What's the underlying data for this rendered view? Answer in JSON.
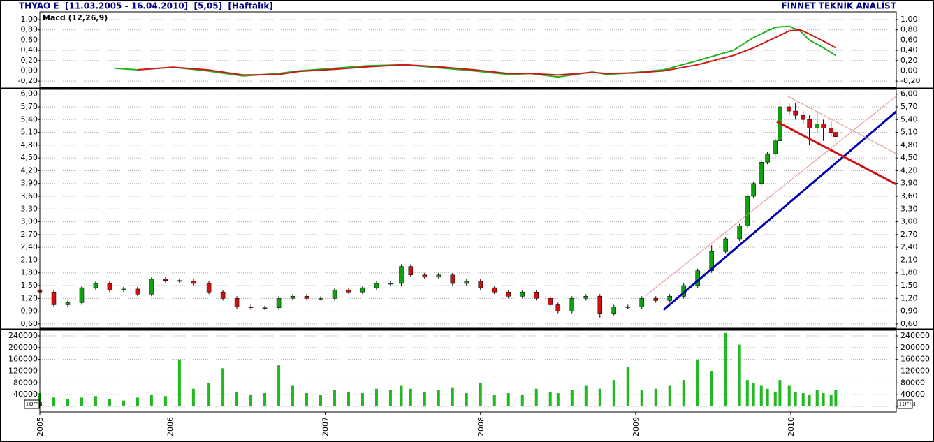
{
  "header": {
    "title": "THYAO E  [11.03.2005 - 16.04.2010]  [5,05]  [Haftalık]",
    "brand": "FİNNET TEKNİK ANALİST"
  },
  "chart_data": [
    {
      "type": "line",
      "title": "Macd (12,26,9)",
      "x": [
        2005.64,
        2005.79,
        2006.02,
        2006.24,
        2006.47,
        2006.7,
        2006.83,
        2007.06,
        2007.28,
        2007.51,
        2007.73,
        2007.96,
        2008.18,
        2008.32,
        2008.5,
        2008.72,
        2008.82,
        2009.0,
        2009.18,
        2009.4,
        2009.63,
        2009.76,
        2009.9,
        2009.99,
        2010.06,
        2010.12,
        2010.21,
        2010.29
      ],
      "series": [
        {
          "color": "#1fb41f",
          "values": [
            0.05,
            0.02,
            0.07,
            0.0,
            -0.1,
            -0.05,
            0.0,
            0.05,
            0.1,
            0.12,
            0.06,
            0.0,
            -0.07,
            -0.05,
            -0.12,
            -0.02,
            -0.07,
            -0.03,
            0.02,
            0.2,
            0.4,
            0.65,
            0.85,
            0.87,
            0.78,
            0.6,
            0.45,
            0.3
          ]
        },
        {
          "color": "#d01818",
          "values": [
            null,
            0.02,
            0.07,
            0.02,
            -0.08,
            -0.07,
            -0.01,
            0.03,
            0.08,
            0.12,
            0.08,
            0.02,
            -0.05,
            -0.05,
            -0.08,
            -0.03,
            -0.05,
            -0.04,
            0.0,
            0.12,
            0.3,
            0.45,
            0.65,
            0.78,
            0.8,
            0.72,
            0.58,
            0.45
          ]
        }
      ],
      "xlim": [
        2005.16,
        2010.68
      ],
      "ylim": [
        -0.32,
        1.15
      ],
      "yticks": [
        {
          "value": -0.2,
          "label": "-0,20"
        },
        {
          "value": 0,
          "label": "0,00"
        },
        {
          "value": 0.2,
          "label": "0,20"
        },
        {
          "value": 0.4,
          "label": "0,40"
        },
        {
          "value": 0.6,
          "label": "0,60"
        },
        {
          "value": 0.8,
          "label": "0,80"
        },
        {
          "value": 1.0,
          "label": "1,00"
        }
      ],
      "tick_color": "#00a000",
      "grid": true
    },
    {
      "type": "candlestick",
      "x": [
        2005.16,
        2005.25,
        2005.34,
        2005.43,
        2005.52,
        2005.61,
        2005.7,
        2005.79,
        2005.88,
        2005.97,
        2006.06,
        2006.15,
        2006.25,
        2006.34,
        2006.43,
        2006.52,
        2006.61,
        2006.7,
        2006.79,
        2006.88,
        2006.97,
        2007.06,
        2007.15,
        2007.24,
        2007.33,
        2007.42,
        2007.49,
        2007.55,
        2007.64,
        2007.73,
        2007.82,
        2007.91,
        2008.0,
        2008.09,
        2008.18,
        2008.27,
        2008.36,
        2008.45,
        2008.5,
        2008.59,
        2008.68,
        2008.77,
        2008.86,
        2008.95,
        2009.04,
        2009.13,
        2009.22,
        2009.31,
        2009.4,
        2009.49,
        2009.58,
        2009.67,
        2009.72,
        2009.76,
        2009.81,
        2009.85,
        2009.9,
        2009.93,
        2009.99,
        2010.03,
        2010.08,
        2010.12,
        2010.17,
        2010.21,
        2010.26,
        2010.29
      ],
      "open": [
        1.4,
        1.35,
        1.05,
        1.1,
        1.45,
        1.55,
        1.4,
        1.42,
        1.3,
        1.65,
        1.62,
        1.6,
        1.55,
        1.35,
        1.2,
        1.0,
        0.98,
        0.98,
        1.2,
        1.25,
        1.2,
        1.2,
        1.4,
        1.35,
        1.45,
        1.55,
        1.55,
        1.95,
        1.75,
        1.7,
        1.75,
        1.55,
        1.6,
        1.45,
        1.35,
        1.25,
        1.35,
        1.2,
        1.05,
        0.9,
        1.2,
        1.25,
        0.85,
        1.0,
        1.0,
        1.2,
        1.15,
        1.25,
        1.5,
        1.85,
        2.3,
        2.6,
        2.9,
        3.6,
        3.9,
        4.4,
        4.6,
        4.9,
        5.7,
        5.6,
        5.5,
        5.4,
        5.2,
        5.3,
        5.2,
        5.1
      ],
      "high": [
        1.45,
        1.4,
        1.15,
        1.5,
        1.6,
        1.6,
        1.47,
        1.47,
        1.7,
        1.7,
        1.67,
        1.65,
        1.6,
        1.4,
        1.25,
        1.05,
        1.03,
        1.25,
        1.3,
        1.3,
        1.25,
        1.45,
        1.45,
        1.5,
        1.6,
        1.6,
        2.0,
        2.0,
        1.8,
        1.8,
        1.8,
        1.65,
        1.65,
        1.5,
        1.4,
        1.4,
        1.4,
        1.25,
        1.1,
        1.25,
        1.3,
        1.3,
        1.05,
        1.05,
        1.25,
        1.25,
        1.3,
        1.55,
        1.9,
        2.45,
        2.65,
        2.95,
        3.65,
        3.95,
        4.45,
        4.65,
        4.95,
        5.9,
        5.8,
        5.8,
        5.6,
        5.5,
        5.6,
        5.4,
        5.35,
        5.15
      ],
      "low": [
        1.3,
        1.0,
        1.0,
        1.05,
        1.4,
        1.35,
        1.35,
        1.25,
        1.25,
        1.57,
        1.55,
        1.5,
        1.3,
        1.15,
        0.95,
        0.93,
        0.93,
        0.93,
        1.15,
        1.15,
        1.15,
        1.15,
        1.3,
        1.3,
        1.4,
        1.5,
        1.5,
        1.7,
        1.65,
        1.65,
        1.5,
        1.5,
        1.4,
        1.3,
        1.2,
        1.2,
        1.15,
        1.0,
        0.85,
        0.85,
        1.15,
        0.75,
        0.8,
        0.95,
        0.95,
        1.1,
        1.1,
        1.2,
        1.45,
        1.8,
        2.25,
        2.55,
        2.85,
        3.55,
        3.85,
        4.35,
        4.55,
        4.85,
        5.5,
        5.4,
        5.3,
        4.8,
        5.1,
        4.9,
        5.0,
        4.85
      ],
      "close": [
        1.35,
        1.05,
        1.1,
        1.45,
        1.55,
        1.4,
        1.42,
        1.3,
        1.65,
        1.62,
        1.6,
        1.55,
        1.35,
        1.2,
        1.0,
        0.98,
        0.98,
        1.2,
        1.25,
        1.2,
        1.2,
        1.4,
        1.35,
        1.45,
        1.55,
        1.55,
        1.95,
        1.75,
        1.7,
        1.75,
        1.55,
        1.6,
        1.45,
        1.35,
        1.25,
        1.35,
        1.2,
        1.05,
        0.9,
        1.2,
        1.25,
        0.85,
        1.0,
        1.0,
        1.2,
        1.15,
        1.25,
        1.5,
        1.85,
        2.3,
        2.6,
        2.9,
        3.6,
        3.9,
        4.4,
        4.6,
        4.9,
        5.7,
        5.6,
        5.5,
        5.4,
        5.2,
        5.3,
        5.2,
        5.1,
        5.0
      ],
      "up_color": "#10a010",
      "down_color": "#d01010",
      "trendlines": [
        {
          "color": "#0000b0",
          "x": [
            2009.18,
            2010.68
          ],
          "y": [
            0.93,
            5.59
          ]
        },
        {
          "color": "#d01010",
          "x": [
            2009.91,
            2010.68
          ],
          "y": [
            5.35,
            3.88
          ]
        },
        {
          "color": "#e89090",
          "x": [
            2009.06,
            2010.68
          ],
          "y": [
            1.25,
            5.95
          ]
        },
        {
          "color": "#e89090",
          "x": [
            2009.98,
            2010.68
          ],
          "y": [
            5.95,
            4.6
          ]
        }
      ],
      "xlim": [
        2005.16,
        2010.68
      ],
      "ylim": [
        0.5,
        6.11
      ],
      "yticks": [
        {
          "value": 0.6,
          "label": "0,60"
        },
        {
          "value": 0.9,
          "label": "0,90"
        },
        {
          "value": 1.2,
          "label": "1,20"
        },
        {
          "value": 1.5,
          "label": "1,50"
        },
        {
          "value": 1.8,
          "label": "1,80"
        },
        {
          "value": 2.1,
          "label": "2,10"
        },
        {
          "value": 2.4,
          "label": "2,40"
        },
        {
          "value": 2.7,
          "label": "2,70"
        },
        {
          "value": 3.0,
          "label": "3,00"
        },
        {
          "value": 3.3,
          "label": "3,30"
        },
        {
          "value": 3.6,
          "label": "3,60"
        },
        {
          "value": 3.9,
          "label": "3,90"
        },
        {
          "value": 4.2,
          "label": "4,20"
        },
        {
          "value": 4.5,
          "label": "4,50"
        },
        {
          "value": 4.8,
          "label": "4,80"
        },
        {
          "value": 5.1,
          "label": "5,10"
        },
        {
          "value": 5.4,
          "label": "5,40"
        },
        {
          "value": 5.7,
          "label": "5,70"
        },
        {
          "value": 6.0,
          "label": "6,00"
        }
      ],
      "tick_color": "#000000",
      "grid": true
    },
    {
      "type": "bar",
      "unit_label": "10^3",
      "x": [
        2005.16,
        2005.25,
        2005.34,
        2005.43,
        2005.52,
        2005.61,
        2005.7,
        2005.79,
        2005.88,
        2005.97,
        2006.06,
        2006.15,
        2006.25,
        2006.34,
        2006.43,
        2006.52,
        2006.61,
        2006.7,
        2006.79,
        2006.88,
        2006.97,
        2007.06,
        2007.15,
        2007.24,
        2007.33,
        2007.42,
        2007.49,
        2007.55,
        2007.64,
        2007.73,
        2007.82,
        2007.91,
        2008.0,
        2008.09,
        2008.18,
        2008.27,
        2008.36,
        2008.45,
        2008.5,
        2008.59,
        2008.68,
        2008.77,
        2008.86,
        2008.95,
        2009.04,
        2009.13,
        2009.22,
        2009.31,
        2009.4,
        2009.49,
        2009.58,
        2009.67,
        2009.72,
        2009.76,
        2009.81,
        2009.85,
        2009.9,
        2009.93,
        2009.99,
        2010.03,
        2010.08,
        2010.12,
        2010.17,
        2010.21,
        2010.26,
        2010.29
      ],
      "values": [
        45000,
        30000,
        25000,
        30000,
        35000,
        25000,
        20000,
        30000,
        40000,
        35000,
        160000,
        60000,
        80000,
        130000,
        50000,
        40000,
        45000,
        140000,
        70000,
        45000,
        40000,
        55000,
        50000,
        45000,
        60000,
        55000,
        70000,
        60000,
        50000,
        55000,
        65000,
        45000,
        80000,
        40000,
        45000,
        40000,
        60000,
        50000,
        45000,
        55000,
        70000,
        60000,
        90000,
        135000,
        55000,
        60000,
        70000,
        90000,
        160000,
        120000,
        250000,
        210000,
        90000,
        80000,
        70000,
        60000,
        50000,
        90000,
        70000,
        50000,
        45000,
        40000,
        55000,
        45000,
        40000,
        55000
      ],
      "color": "#22b822",
      "xlim": [
        2005.16,
        2010.68
      ],
      "ylim": [
        -19000,
        259000
      ],
      "yticks": [
        0,
        40000,
        80000,
        120000,
        160000,
        200000,
        240000
      ],
      "xticks": [
        {
          "value": 2005.16,
          "label": "2005"
        },
        2006,
        2007,
        2008,
        2009,
        2010
      ],
      "tick_color": "#000000",
      "grid": true
    }
  ]
}
